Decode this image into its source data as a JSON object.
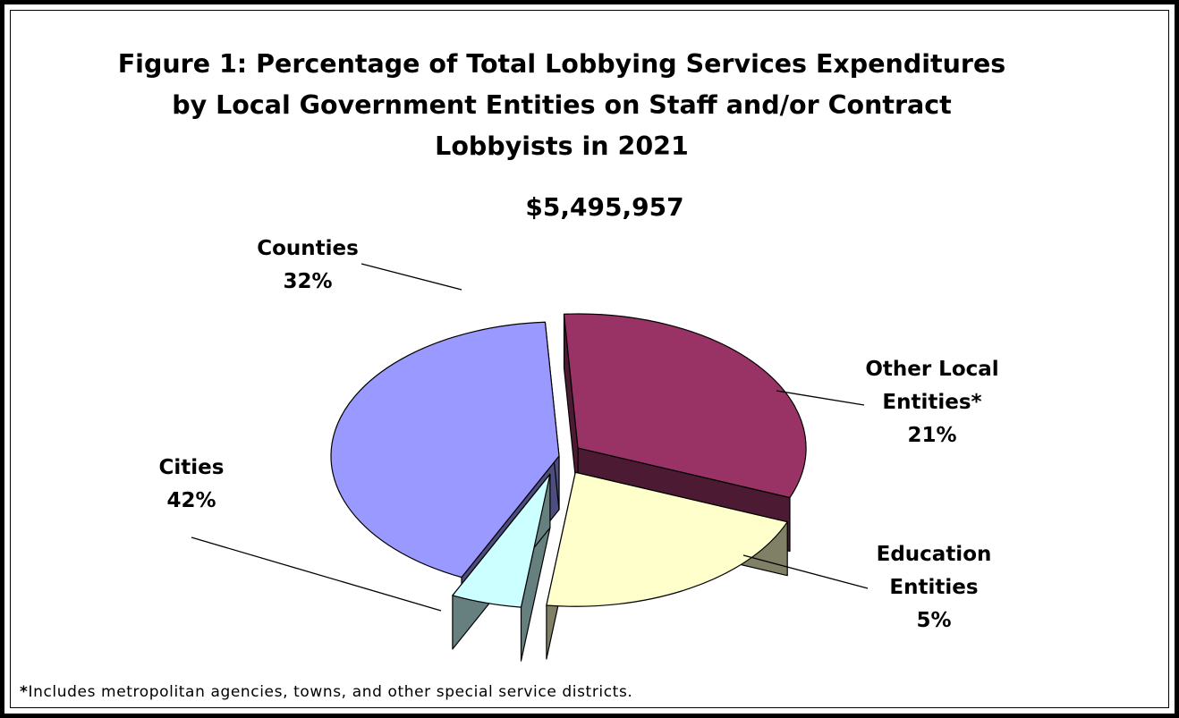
{
  "chart_data": {
    "type": "pie",
    "title_lines": [
      "Figure 1:  Percentage of Total Lobbying Services Expenditures",
      "by Local Government Entities on Staff and/or Contract",
      "Lobbyists in 2021"
    ],
    "total_label": "$5,495,957",
    "slices": [
      {
        "name": "Counties",
        "value": 32,
        "label_lines": [
          "Counties",
          "32%"
        ],
        "color": "#993366",
        "dark": "#4d1a33"
      },
      {
        "name": "Other Local Entities*",
        "value": 21,
        "label_lines": [
          "Other Local",
          "Entities*",
          "21%"
        ],
        "color": "#ffffcc",
        "dark": "#808066"
      },
      {
        "name": "Education Entities",
        "value": 5,
        "label_lines": [
          "Education",
          "Entities",
          "5%"
        ],
        "color": "#ccffff",
        "dark": "#668080"
      },
      {
        "name": "Cities",
        "value": 42,
        "label_lines": [
          "Cities",
          "42%"
        ],
        "color": "#9999ff",
        "dark": "#4d4d80"
      }
    ],
    "legend": "none",
    "grid": false
  },
  "footnote": {
    "marker": "*",
    "text": "Includes metropolitan agencies, towns, and other special service districts."
  }
}
